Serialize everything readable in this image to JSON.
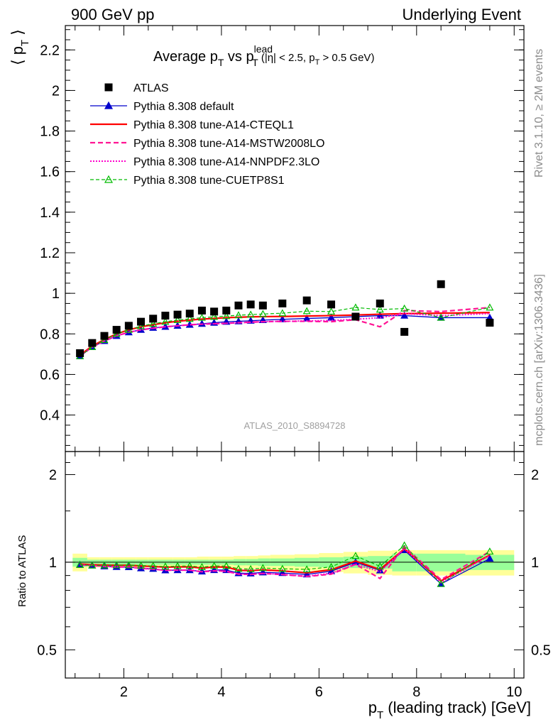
{
  "header": {
    "left": "900 GeV pp",
    "right": "Underlying Event"
  },
  "title": {
    "main": "Average p",
    "sub": "T",
    "vs": " vs p",
    "sup": "lead",
    "sub2": "T",
    "cut_pre": " (|η| < 2.5, p",
    "cut_sub": "T",
    "cut_post": " > 0.5 GeV)"
  },
  "side_labels": {
    "rivet": "Rivet 3.1.10, ≥ 2M events",
    "mcplots": "mcplots.cern.ch [arXiv:1306.3436]"
  },
  "watermark": "ATLAS_2010_S8894728",
  "colors": {
    "atlas": "#000000",
    "default": "#0000cc",
    "cteql1": "#ff0000",
    "mstw": "#ff1493",
    "nnpdf": "#ff00cc",
    "cuetp8s1": "#00bb00",
    "band_inner": "#99ff99",
    "band_outer": "#ffff99"
  },
  "chart_data": [
    {
      "type": "scatter",
      "panel": "main",
      "ylabel": "⟨ p_T ⟩",
      "ylim": [
        0.22,
        2.32
      ],
      "xlim": [
        0.8,
        10.2
      ],
      "yticks": [
        0.4,
        0.6,
        0.8,
        1,
        1.2,
        1.4,
        1.6,
        1.8,
        2,
        2.2
      ],
      "ytick_labels": [
        "0.4",
        "0.6",
        "0.8",
        "1",
        "1.2",
        "1.4",
        "1.6",
        "1.8",
        "2",
        "2.2"
      ],
      "legend": "top-left",
      "x": [
        1.1,
        1.35,
        1.6,
        1.85,
        2.1,
        2.35,
        2.6,
        2.85,
        3.1,
        3.35,
        3.6,
        3.85,
        4.1,
        4.35,
        4.6,
        4.85,
        5.25,
        5.75,
        6.25,
        6.75,
        7.25,
        7.75,
        8.5,
        9.5
      ],
      "series": [
        {
          "name": "ATLAS",
          "style": "data",
          "values": [
            0.705,
            0.755,
            0.79,
            0.82,
            0.84,
            0.86,
            0.875,
            0.89,
            0.895,
            0.9,
            0.915,
            0.91,
            0.915,
            0.94,
            0.945,
            0.94,
            0.95,
            0.965,
            0.945,
            0.885,
            0.95,
            0.81,
            1.045,
            0.855
          ]
        },
        {
          "name": "Pythia 8.308 default",
          "style": "default",
          "values": [
            0.69,
            0.735,
            0.765,
            0.79,
            0.808,
            0.82,
            0.83,
            0.835,
            0.84,
            0.845,
            0.85,
            0.855,
            0.86,
            0.862,
            0.865,
            0.868,
            0.872,
            0.876,
            0.88,
            0.885,
            0.89,
            0.89,
            0.88,
            0.88
          ]
        },
        {
          "name": "Pythia 8.308 tune-A14-CTEQL1",
          "style": "cteql1",
          "values": [
            0.695,
            0.74,
            0.772,
            0.8,
            0.82,
            0.835,
            0.845,
            0.855,
            0.862,
            0.868,
            0.873,
            0.876,
            0.88,
            0.882,
            0.884,
            0.885,
            0.886,
            0.888,
            0.89,
            0.893,
            0.897,
            0.9,
            0.902,
            0.905
          ]
        },
        {
          "name": "Pythia 8.308 tune-A14-MSTW2008LO",
          "style": "mstw",
          "values": [
            0.69,
            0.735,
            0.765,
            0.79,
            0.808,
            0.82,
            0.828,
            0.835,
            0.84,
            0.845,
            0.848,
            0.85,
            0.852,
            0.855,
            0.858,
            0.86,
            0.862,
            0.862,
            0.86,
            0.87,
            0.835,
            0.915,
            0.91,
            0.93
          ]
        },
        {
          "name": "Pythia 8.308 tune-A14-NNPDF2.3LO",
          "style": "nnpdf",
          "values": [
            0.69,
            0.735,
            0.765,
            0.79,
            0.808,
            0.82,
            0.828,
            0.835,
            0.84,
            0.845,
            0.848,
            0.85,
            0.852,
            0.855,
            0.857,
            0.86,
            0.862,
            0.864,
            0.866,
            0.872,
            0.88,
            0.9,
            0.89,
            0.9
          ]
        },
        {
          "name": "Pythia 8.308 tune-CUETP8S1",
          "style": "cuetp8s1",
          "values": [
            0.69,
            0.735,
            0.77,
            0.8,
            0.82,
            0.838,
            0.85,
            0.86,
            0.868,
            0.874,
            0.88,
            0.884,
            0.888,
            0.892,
            0.895,
            0.898,
            0.902,
            0.912,
            0.91,
            0.93,
            0.92,
            0.925,
            0.88,
            0.93
          ]
        }
      ]
    },
    {
      "type": "line",
      "panel": "ratio",
      "ylabel": "Ratio to ATLAS",
      "ylog": true,
      "ylim": [
        0.4,
        2.4
      ],
      "xlim": [
        0.8,
        10.2
      ],
      "yticks": [
        0.5,
        1,
        2
      ],
      "ytick_labels": [
        "0.5",
        "1",
        "2"
      ],
      "xticks": [
        2,
        4,
        6,
        8,
        10
      ],
      "xtick_labels": [
        "2",
        "4",
        "6",
        "8",
        "10"
      ],
      "xlabel": "p_T (leading track) [GeV]",
      "x": [
        1.1,
        1.35,
        1.6,
        1.85,
        2.1,
        2.35,
        2.6,
        2.85,
        3.1,
        3.35,
        3.6,
        3.85,
        4.1,
        4.35,
        4.6,
        4.85,
        5.25,
        5.75,
        6.25,
        6.75,
        7.25,
        7.75,
        8.5,
        9.5
      ],
      "band_bins": [
        [
          0.95,
          1.25
        ],
        [
          1.25,
          1.5
        ],
        [
          1.5,
          1.75
        ],
        [
          1.75,
          2.0
        ],
        [
          2.0,
          2.25
        ],
        [
          2.25,
          2.5
        ],
        [
          2.5,
          2.75
        ],
        [
          2.75,
          3.0
        ],
        [
          3.0,
          3.25
        ],
        [
          3.25,
          3.5
        ],
        [
          3.5,
          3.75
        ],
        [
          3.75,
          4.0
        ],
        [
          4.0,
          4.25
        ],
        [
          4.25,
          4.5
        ],
        [
          4.5,
          4.75
        ],
        [
          4.75,
          5.0
        ],
        [
          5.0,
          5.5
        ],
        [
          5.5,
          6.0
        ],
        [
          6.0,
          6.5
        ],
        [
          6.5,
          7.0
        ],
        [
          7.0,
          7.5
        ],
        [
          7.5,
          8.0
        ],
        [
          8.0,
          9.0
        ],
        [
          9.0,
          10.0
        ]
      ],
      "band_inner": [
        0.035,
        0.02,
        0.02,
        0.02,
        0.02,
        0.02,
        0.02,
        0.02,
        0.02,
        0.02,
        0.02,
        0.02,
        0.02,
        0.025,
        0.025,
        0.03,
        0.03,
        0.035,
        0.04,
        0.045,
        0.05,
        0.07,
        0.07,
        0.06
      ],
      "band_outer": [
        0.07,
        0.04,
        0.04,
        0.04,
        0.04,
        0.04,
        0.04,
        0.04,
        0.04,
        0.04,
        0.045,
        0.045,
        0.045,
        0.05,
        0.05,
        0.055,
        0.06,
        0.065,
        0.075,
        0.085,
        0.095,
        0.1,
        0.1,
        0.1
      ],
      "series": [
        {
          "name": "Pythia 8.308 default",
          "style": "default",
          "values": [
            0.98,
            0.975,
            0.968,
            0.963,
            0.962,
            0.953,
            0.949,
            0.938,
            0.939,
            0.939,
            0.929,
            0.94,
            0.94,
            0.917,
            0.915,
            0.923,
            0.918,
            0.908,
            0.931,
            1.0,
            0.937,
            1.1,
            0.842,
            1.029
          ]
        },
        {
          "name": "Pythia 8.308 tune-A14-CTEQL1",
          "style": "cteql1",
          "values": [
            0.986,
            0.98,
            0.977,
            0.976,
            0.976,
            0.971,
            0.966,
            0.961,
            0.963,
            0.964,
            0.954,
            0.963,
            0.962,
            0.938,
            0.935,
            0.941,
            0.933,
            0.92,
            0.942,
            1.009,
            0.944,
            1.111,
            0.863,
            1.058
          ]
        },
        {
          "name": "Pythia 8.308 tune-A14-MSTW2008LO",
          "style": "mstw",
          "values": [
            0.979,
            0.974,
            0.968,
            0.963,
            0.962,
            0.953,
            0.946,
            0.938,
            0.939,
            0.939,
            0.927,
            0.934,
            0.931,
            0.91,
            0.908,
            0.915,
            0.907,
            0.893,
            0.91,
            0.983,
            0.879,
            1.13,
            0.871,
            1.088
          ]
        },
        {
          "name": "Pythia 8.308 tune-A14-NNPDF2.3LO",
          "style": "nnpdf",
          "values": [
            0.979,
            0.974,
            0.968,
            0.963,
            0.962,
            0.953,
            0.946,
            0.938,
            0.939,
            0.939,
            0.927,
            0.934,
            0.931,
            0.91,
            0.907,
            0.915,
            0.907,
            0.895,
            0.916,
            0.985,
            0.926,
            1.111,
            0.852,
            1.053
          ]
        },
        {
          "name": "Pythia 8.308 tune-CUETP8S1",
          "style": "cuetp8s1",
          "values": [
            0.979,
            0.974,
            0.975,
            0.976,
            0.976,
            0.974,
            0.971,
            0.966,
            0.97,
            0.971,
            0.962,
            0.971,
            0.97,
            0.949,
            0.947,
            0.955,
            0.949,
            0.945,
            0.963,
            1.051,
            0.968,
            1.142,
            0.842,
            1.088
          ]
        }
      ]
    }
  ]
}
